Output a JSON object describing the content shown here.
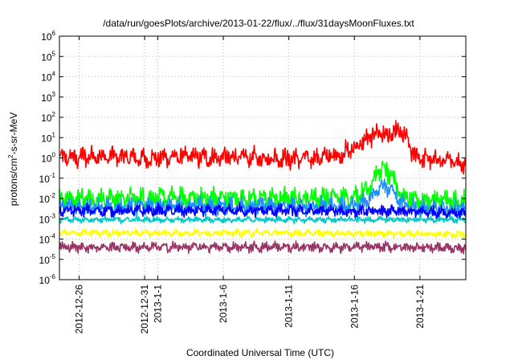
{
  "chart_data": {
    "type": "line",
    "title": "/data/run/goesPlots/archive/2013-01-22/flux/../flux/31daysMoonFluxes.txt",
    "xlabel": "Coordinated Universal Time (UTC)",
    "ylabel": {
      "pre": "protons/cm",
      "sup": "2",
      "post": "-s-sr-MeV"
    },
    "x_range_days": [
      -7.5,
      23.5
    ],
    "x_ticks": [
      {
        "label": "2012-12-26",
        "day": -6
      },
      {
        "label": "2012-12-31",
        "day": -1
      },
      {
        "label": "2013-1-1",
        "day": 0
      },
      {
        "label": "2013-1-6",
        "day": 5
      },
      {
        "label": "2013-1-11",
        "day": 10
      },
      {
        "label": "2013-1-16",
        "day": 15
      },
      {
        "label": "2013-1-21",
        "day": 20
      }
    ],
    "y_scale": "log",
    "ylim": [
      1e-06,
      1000000.0
    ],
    "y_ticks": [
      {
        "base": "10",
        "exp": "-6"
      },
      {
        "base": "10",
        "exp": "-5"
      },
      {
        "base": "10",
        "exp": "-4"
      },
      {
        "base": "10",
        "exp": "-3"
      },
      {
        "base": "10",
        "exp": "-2"
      },
      {
        "base": "10",
        "exp": "-1"
      },
      {
        "base": "10",
        "exp": "0"
      },
      {
        "base": "10",
        "exp": "1"
      },
      {
        "base": "10",
        "exp": "2"
      },
      {
        "base": "10",
        "exp": "3"
      },
      {
        "base": "10",
        "exp": "4"
      },
      {
        "base": "10",
        "exp": "5"
      },
      {
        "base": "10",
        "exp": "6"
      }
    ],
    "grid": true,
    "series": [
      {
        "color": "#ff0000",
        "x": [
          -7.5,
          -6,
          -5,
          -4,
          -3,
          -2,
          -1,
          0,
          2,
          4,
          6,
          8,
          10,
          12,
          13,
          14,
          15,
          16,
          16.5,
          17,
          17.5,
          18,
          18.5,
          19,
          19.5,
          20,
          21,
          22,
          23,
          23.5
        ],
        "center": [
          1,
          1,
          1.3,
          1,
          1.2,
          1,
          0.9,
          1,
          1.2,
          1,
          1.1,
          1,
          0.9,
          1,
          1.2,
          1.5,
          3,
          8,
          15,
          20,
          10,
          15,
          20,
          8,
          1.5,
          1,
          0.8,
          0.7,
          0.6,
          0.6
        ],
        "spread": 0.5
      },
      {
        "color": "#00ff00",
        "x": [
          -7.5,
          0,
          10,
          15,
          16,
          16.5,
          17,
          17.5,
          18,
          18.5,
          19,
          19.5,
          20,
          23.5
        ],
        "center": [
          0.01,
          0.01,
          0.01,
          0.012,
          0.03,
          0.1,
          0.3,
          0.2,
          0.08,
          0.02,
          0.01,
          0.01,
          0.008,
          0.007
        ],
        "spread": 0.55
      },
      {
        "color": "#1e90ff",
        "x": [
          -7.5,
          0,
          10,
          15,
          16,
          16.5,
          17,
          17.5,
          18,
          18.5,
          19,
          19.5,
          20,
          23.5
        ],
        "center": [
          0.004,
          0.004,
          0.004,
          0.004,
          0.008,
          0.02,
          0.05,
          0.04,
          0.02,
          0.006,
          0.004,
          0.004,
          0.003,
          0.003
        ],
        "spread": 0.45
      },
      {
        "color": "#0000ff",
        "x": [
          -7.5,
          0,
          10,
          20,
          23.5
        ],
        "center": [
          0.0025,
          0.0025,
          0.0025,
          0.0022,
          0.002
        ],
        "spread": 0.3
      },
      {
        "color": "#00c8c8",
        "x": [
          -7.5,
          0,
          10,
          20,
          23.5
        ],
        "center": [
          0.0009,
          0.0009,
          0.0009,
          0.0009,
          0.0009
        ],
        "spread": 0.15
      },
      {
        "color": "#ffff00",
        "x": [
          -7.5,
          0,
          10,
          20,
          23.5
        ],
        "center": [
          0.0002,
          0.0002,
          0.0002,
          0.00018,
          0.00018
        ],
        "spread": 0.18
      },
      {
        "color": "#993366",
        "x": [
          -7.5,
          0,
          10,
          20,
          23.5
        ],
        "center": [
          4e-05,
          4e-05,
          4e-05,
          4e-05,
          3.5e-05
        ],
        "spread": 0.25
      }
    ]
  }
}
